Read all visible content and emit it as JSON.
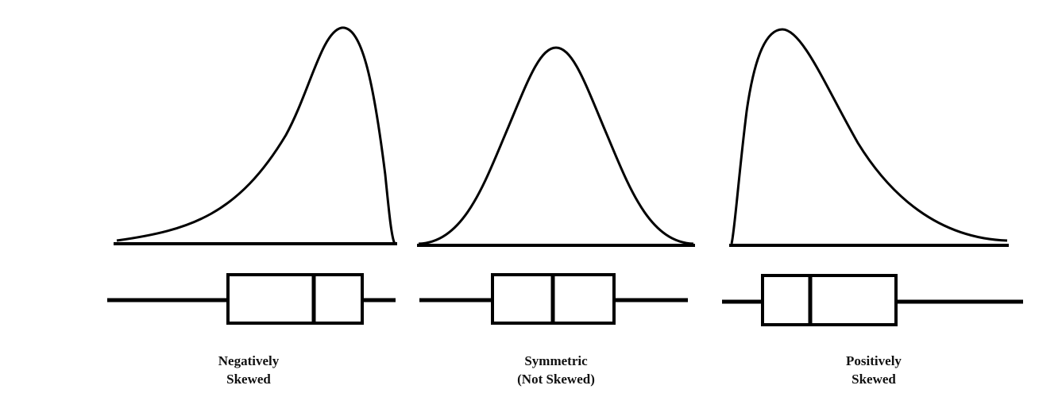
{
  "panels": [
    {
      "id": "negative",
      "caption": [
        "Negatively",
        "Skewed"
      ]
    },
    {
      "id": "symmetric",
      "caption": [
        "Symmetric",
        "(Not Skewed)"
      ]
    },
    {
      "id": "positive",
      "caption": [
        "Positively",
        "Skewed"
      ]
    }
  ],
  "colors": {
    "stroke": "#000000",
    "background": "#ffffff"
  }
}
